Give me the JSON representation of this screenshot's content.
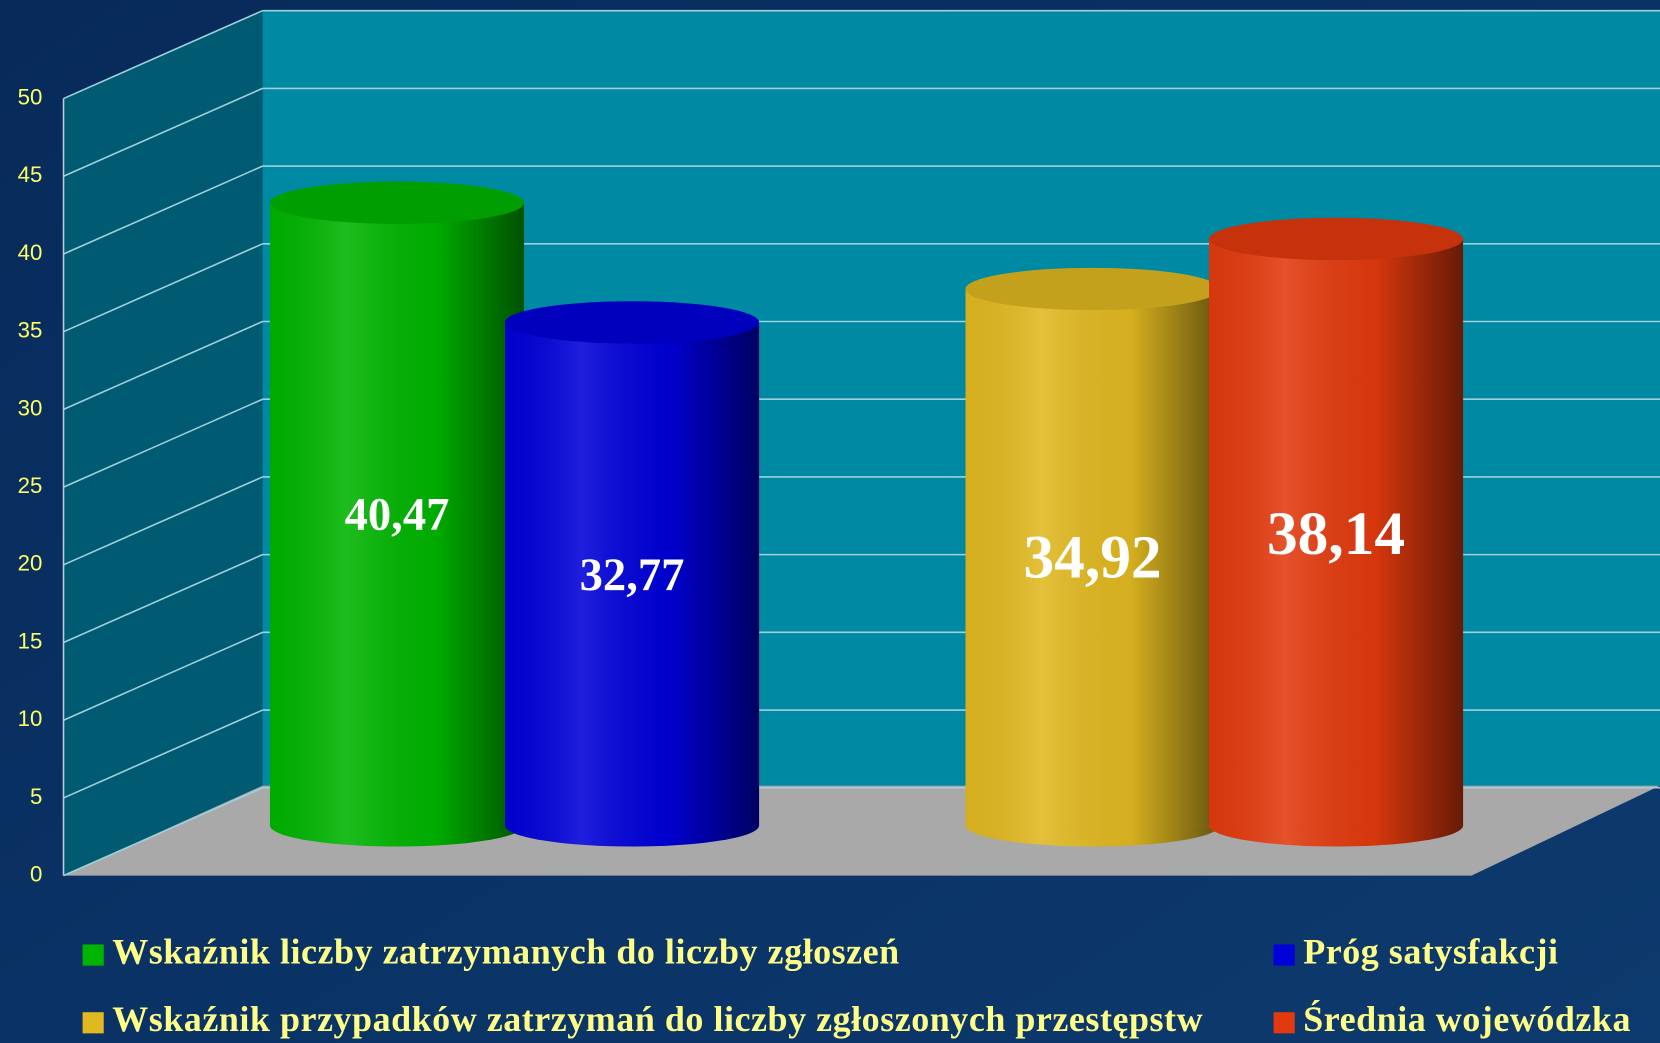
{
  "chart_data": {
    "type": "bar",
    "categories": [
      null,
      null
    ],
    "series": [
      {
        "name": "Wskaźnik liczby zatrzymanych do liczby zgłoszeń",
        "color": "#00b400",
        "values": [
          40.47,
          null
        ],
        "value_labels": [
          "40,47",
          null
        ]
      },
      {
        "name": "Próg satysfakcji",
        "color": "#0000d8",
        "values": [
          32.77,
          null
        ],
        "value_labels": [
          "32,77",
          null
        ]
      },
      {
        "name": "Wskaźnik przypadków zatrzymań do liczby zgłoszonych przestępstw",
        "color": "#e0b820",
        "values": [
          null,
          34.92
        ],
        "value_labels": [
          null,
          "34,92"
        ]
      },
      {
        "name": "Średnia wojewódzka",
        "color": "#e23a0e",
        "values": [
          null,
          38.14
        ],
        "value_labels": [
          null,
          "38,14"
        ]
      }
    ],
    "ylim": [
      0,
      50
    ],
    "yticks": [
      0,
      5,
      10,
      15,
      20,
      25,
      30,
      35,
      40,
      45,
      50
    ],
    "grid": true,
    "legend": "bottom"
  }
}
